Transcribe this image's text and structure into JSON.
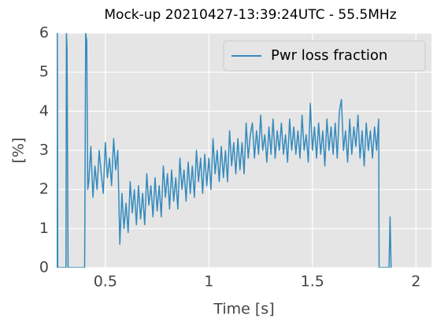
{
  "chart_data": {
    "type": "line",
    "title": "Mock-up 20210427-13:39:24UTC - 55.5MHz",
    "xlabel": "Time [s]",
    "ylabel": "[%]",
    "xlim": [
      0.265,
      2.075
    ],
    "ylim": [
      0,
      6
    ],
    "xticks": [
      0.5,
      1,
      1.5,
      2
    ],
    "yticks": [
      0,
      1,
      2,
      3,
      4,
      5,
      6
    ],
    "grid": true,
    "legend": "upper right",
    "x": [
      0.265,
      0.268,
      0.27,
      0.31,
      0.312,
      0.315,
      0.32,
      0.4,
      0.405,
      0.41,
      0.415,
      0.42,
      0.43,
      0.44,
      0.45,
      0.46,
      0.47,
      0.48,
      0.49,
      0.5,
      0.51,
      0.52,
      0.53,
      0.54,
      0.55,
      0.56,
      0.57,
      0.58,
      0.59,
      0.6,
      0.61,
      0.62,
      0.63,
      0.64,
      0.65,
      0.66,
      0.67,
      0.68,
      0.69,
      0.7,
      0.71,
      0.72,
      0.73,
      0.74,
      0.75,
      0.76,
      0.77,
      0.78,
      0.79,
      0.8,
      0.81,
      0.82,
      0.83,
      0.84,
      0.85,
      0.86,
      0.87,
      0.88,
      0.89,
      0.9,
      0.91,
      0.92,
      0.93,
      0.94,
      0.95,
      0.96,
      0.97,
      0.98,
      0.99,
      1.0,
      1.01,
      1.02,
      1.03,
      1.04,
      1.05,
      1.06,
      1.07,
      1.08,
      1.09,
      1.1,
      1.11,
      1.12,
      1.13,
      1.14,
      1.15,
      1.16,
      1.17,
      1.18,
      1.19,
      1.2,
      1.21,
      1.22,
      1.23,
      1.24,
      1.25,
      1.26,
      1.27,
      1.28,
      1.29,
      1.3,
      1.31,
      1.32,
      1.33,
      1.34,
      1.35,
      1.36,
      1.37,
      1.38,
      1.39,
      1.4,
      1.41,
      1.42,
      1.43,
      1.44,
      1.45,
      1.46,
      1.47,
      1.48,
      1.49,
      1.5,
      1.51,
      1.52,
      1.53,
      1.54,
      1.55,
      1.56,
      1.57,
      1.58,
      1.59,
      1.6,
      1.61,
      1.62,
      1.63,
      1.64,
      1.65,
      1.66,
      1.67,
      1.68,
      1.69,
      1.7,
      1.71,
      1.72,
      1.73,
      1.74,
      1.75,
      1.76,
      1.77,
      1.78,
      1.79,
      1.8,
      1.81,
      1.82,
      1.822,
      1.87,
      1.875,
      1.88
    ],
    "series": [
      {
        "name": "Pwr loss fraction",
        "color": "#348abd",
        "values": [
          0,
          6,
          0,
          0,
          6,
          5.6,
          0,
          0,
          6,
          5.8,
          2,
          2.2,
          3.1,
          1.8,
          2.6,
          2.0,
          3.0,
          2.4,
          1.9,
          3.2,
          2.3,
          2.8,
          2.1,
          3.3,
          2.5,
          3.0,
          0.6,
          1.9,
          1.0,
          1.65,
          0.9,
          2.2,
          1.4,
          2.0,
          1.1,
          2.1,
          1.25,
          1.9,
          1.1,
          2.4,
          1.6,
          2.1,
          1.3,
          2.3,
          1.45,
          2.1,
          1.3,
          2.6,
          1.8,
          2.4,
          1.5,
          2.5,
          1.7,
          2.3,
          1.5,
          2.8,
          2.0,
          2.5,
          1.7,
          2.7,
          1.9,
          2.6,
          1.8,
          3.0,
          2.2,
          2.8,
          1.9,
          2.9,
          2.1,
          2.8,
          2.0,
          3.3,
          2.4,
          3.0,
          2.2,
          3.1,
          2.3,
          3.0,
          2.2,
          3.5,
          2.6,
          3.2,
          2.4,
          3.3,
          2.5,
          3.2,
          2.4,
          3.7,
          2.8,
          3.4,
          3.7,
          2.8,
          3.5,
          2.9,
          3.9,
          3.0,
          3.4,
          2.7,
          3.6,
          2.9,
          3.8,
          2.8,
          3.5,
          3.0,
          3.7,
          2.9,
          3.4,
          2.7,
          3.8,
          3.0,
          3.6,
          2.9,
          3.5,
          2.8,
          3.9,
          3.0,
          3.4,
          2.7,
          4.2,
          3.0,
          3.6,
          2.8,
          3.7,
          2.9,
          3.5,
          2.6,
          3.8,
          3.0,
          3.6,
          2.9,
          3.7,
          2.8,
          4.0,
          4.3,
          3.0,
          3.5,
          2.7,
          3.8,
          2.9,
          3.6,
          3.1,
          3.9,
          2.8,
          3.5,
          2.6,
          3.7,
          3.0,
          3.5,
          2.8,
          3.6,
          3.0,
          3.8,
          0,
          0,
          1.3,
          0
        ]
      }
    ]
  }
}
